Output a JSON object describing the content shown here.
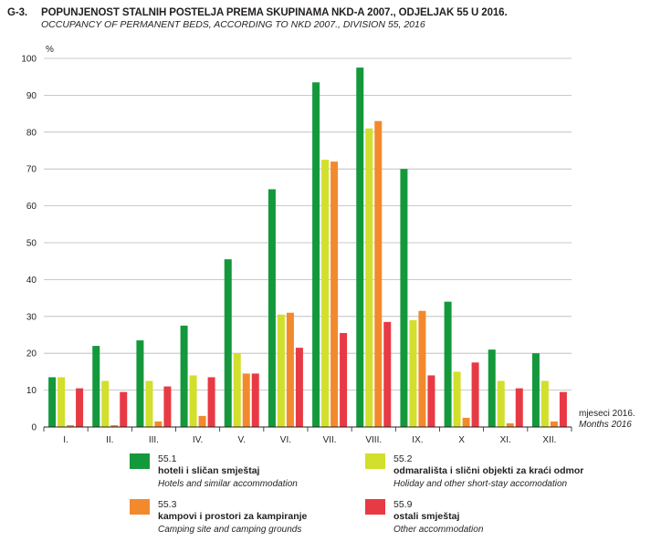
{
  "figure": {
    "number": "G-3.",
    "title": "POPUNJENOST STALNIH POSTELJA PREMA SKUPINAMA NKD-A 2007., ODJELJAK 55 U 2016.",
    "subtitle": "OCCUPANCY OF PERMANENT BEDS, ACCORDING TO NKD 2007., DIVISION 55, 2016"
  },
  "chart_data": {
    "type": "bar",
    "title": "POPUNJENOST STALNIH POSTELJA PREMA SKUPINAMA NKD-A 2007., ODJELJAK 55 U 2016.",
    "subtitle": "OCCUPANCY OF PERMANENT BEDS, ACCORDING TO NKD 2007., DIVISION 55, 2016",
    "ylabel": "%",
    "xlabel": "mjeseci 2016.",
    "xlabel_en": "Months 2016",
    "ylim": [
      0,
      100
    ],
    "yticks": [
      0,
      10,
      20,
      30,
      40,
      50,
      60,
      70,
      80,
      90,
      100
    ],
    "grid": true,
    "legend_position": "bottom",
    "categories": [
      "I.",
      "II.",
      "III.",
      "IV.",
      "V.",
      "VI.",
      "VII.",
      "VIII.",
      "IX.",
      "X",
      "XI.",
      "XII."
    ],
    "series": [
      {
        "code": "55.1",
        "name": "hoteli i sličan smještaj",
        "name_en": "Hotels and similar accommodation",
        "color": "#14983c",
        "values": [
          13.5,
          22,
          23.5,
          27.5,
          45.5,
          64.5,
          93.5,
          97.5,
          70,
          34,
          21,
          20
        ]
      },
      {
        "code": "55.2",
        "name": "odmarališta i slični objekti za kraći odmor",
        "name_en": "Holiday and other short-stay accomodation",
        "color": "#d2df2c",
        "values": [
          13.5,
          12.5,
          12.5,
          14,
          20,
          30.5,
          72.5,
          81,
          29,
          15,
          12.5,
          12.5
        ]
      },
      {
        "code": "55.3",
        "name": "kampovi i prostori za kampiranje",
        "name_en": "Camping site and camping grounds",
        "color": "#f28a2d",
        "values": [
          0.5,
          0.5,
          1.5,
          3,
          14.5,
          31,
          72,
          83,
          31.5,
          2.5,
          1,
          1.5
        ]
      },
      {
        "code": "55.9",
        "name": "ostali smještaj",
        "name_en": "Other accommodation",
        "color": "#e83a44",
        "values": [
          10.5,
          9.5,
          11,
          13.5,
          14.5,
          21.5,
          25.5,
          28.5,
          14,
          17.5,
          10.5,
          9.5
        ]
      }
    ]
  }
}
